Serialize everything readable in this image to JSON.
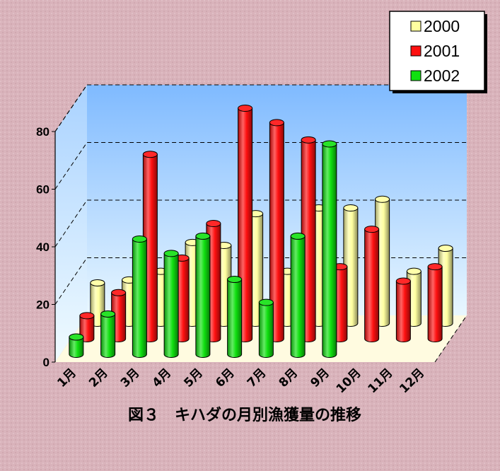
{
  "chart_data": {
    "type": "bar",
    "title": "図３　キハダの月別漁獲量の推移",
    "categories": [
      "1月",
      "2月",
      "3月",
      "4月",
      "5月",
      "6月",
      "7月",
      "8月",
      "9月",
      "10月",
      "11月",
      "12月"
    ],
    "series": [
      {
        "name": "2000",
        "color": "#ffffa0",
        "values": [
          14,
          15,
          18,
          28,
          27,
          38,
          18,
          40,
          40,
          43,
          18,
          26
        ]
      },
      {
        "name": "2001",
        "color": "#ff1010",
        "values": [
          8,
          16,
          64,
          28,
          40,
          80,
          75,
          69,
          25,
          38,
          20,
          25
        ]
      },
      {
        "name": "2002",
        "color": "#10e010",
        "values": [
          6,
          14,
          40,
          35,
          41,
          26,
          18,
          41,
          73,
          0,
          0,
          0
        ]
      }
    ],
    "yticks": [
      "0",
      "20",
      "40",
      "60",
      "80"
    ],
    "ylim": [
      0,
      80
    ],
    "legend_position": "top-right"
  }
}
